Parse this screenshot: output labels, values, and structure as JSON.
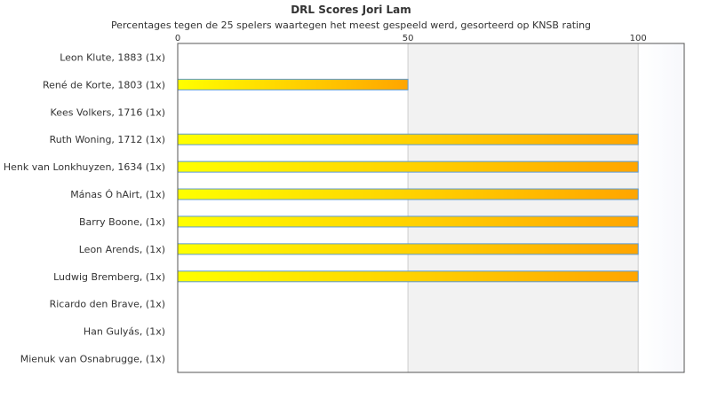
{
  "chart_data": {
    "type": "bar",
    "orientation": "horizontal",
    "title": "DRL Scores Jori Lam",
    "subtitle": "Percentages tegen de 25 spelers waartegen het meest gespeeld werd, gesorteerd op KNSB rating",
    "xlabel": "",
    "ylabel": "",
    "xlim": [
      0,
      110
    ],
    "ticks": [
      0,
      50,
      100
    ],
    "tick_labels": [
      "0",
      "50",
      "100"
    ],
    "grid": true,
    "categories": [
      "Leon Klute, 1883 (1x)",
      "René de Korte, 1803 (1x)",
      "Kees Volkers, 1716 (1x)",
      "Ruth Woning, 1712 (1x)",
      "Henk van Lonkhuyzen, 1634 (1x)",
      "Mánas Ó hAirt,  (1x)",
      "Barry Boone,  (1x)",
      "Leon Arends,  (1x)",
      "Ludwig Bremberg,  (1x)",
      "Ricardo den Brave,  (1x)",
      "Han Gulyás,  (1x)",
      "Mienuk van Osnabrugge,  (1x)"
    ],
    "values": [
      0,
      50,
      0,
      100,
      100,
      100,
      100,
      100,
      100,
      0,
      0,
      0
    ],
    "colors": {
      "bar_start": "#ffff00",
      "bar_end": "#ffa500",
      "bar_border": "#5b9bd5",
      "band": "#f2f2f2",
      "band_fade": "#f7f8fc",
      "grid": "#cccccc",
      "axis": "#555555"
    }
  }
}
